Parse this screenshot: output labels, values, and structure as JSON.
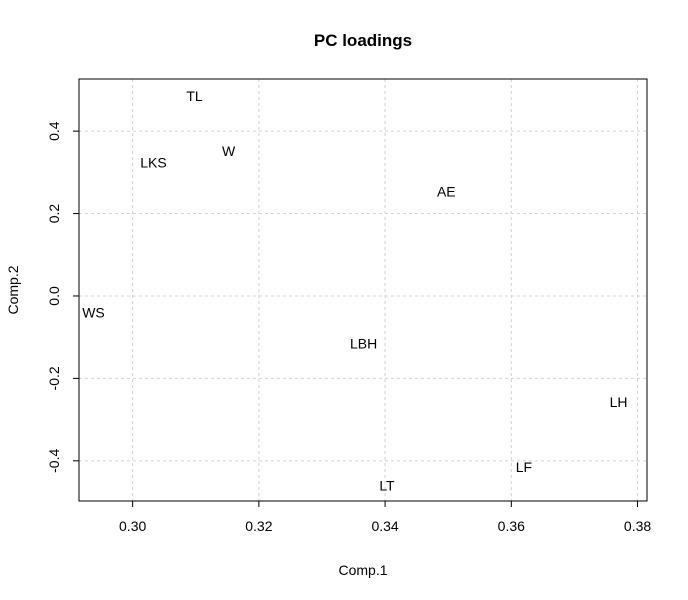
{
  "chart_data": {
    "type": "scatter",
    "title": "PC loadings",
    "xlabel": "Comp.1",
    "ylabel": "Comp.2",
    "xlim": [
      0.2915,
      0.3815
    ],
    "ylim": [
      -0.4975,
      0.5265
    ],
    "xticks": [
      0.3,
      0.32,
      0.34,
      0.36,
      0.38
    ],
    "xtick_labels": [
      "0.30",
      "0.32",
      "0.34",
      "0.36",
      "0.38"
    ],
    "yticks": [
      -0.4,
      -0.2,
      0.0,
      0.2,
      0.4
    ],
    "ytick_labels": [
      "-0.4",
      "-0.2",
      "0.0",
      "0.2",
      "0.4"
    ],
    "grid": true,
    "points": [
      {
        "label": "TL",
        "x": 0.3098,
        "y": 0.4855
      },
      {
        "label": "W",
        "x": 0.3152,
        "y": 0.352
      },
      {
        "label": "LKS",
        "x": 0.3033,
        "y": 0.3235
      },
      {
        "label": "AE",
        "x": 0.3497,
        "y": 0.2534
      },
      {
        "label": "WS",
        "x": 0.2938,
        "y": -0.0401
      },
      {
        "label": "LBH",
        "x": 0.3366,
        "y": -0.1148
      },
      {
        "label": "LH",
        "x": 0.377,
        "y": -0.2576
      },
      {
        "label": "LF",
        "x": 0.362,
        "y": -0.4153
      },
      {
        "label": "LT",
        "x": 0.3403,
        "y": -0.4602
      }
    ]
  }
}
